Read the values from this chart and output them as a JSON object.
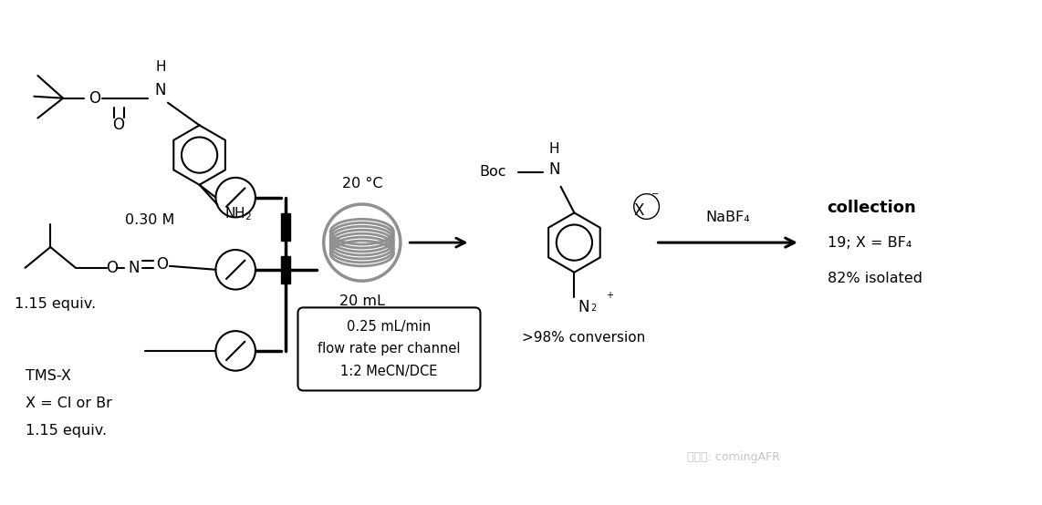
{
  "bg_color": "#ffffff",
  "fig_width": 11.42,
  "fig_height": 5.54,
  "watermark": "微信号: corningAFR",
  "labels": {
    "conc1": "0.30 M",
    "reagent2": "1.15 equiv.",
    "reagent3_line1": "TMS-X",
    "reagent3_line2": "X = Cl or Br",
    "reagent3_line3": "1.15 equiv.",
    "temp": "20 °C",
    "volume": "20 mL",
    "box_line1": "0.25 mL/min",
    "box_line2": "flow rate per channel",
    "box_line3": "1:2 MeCN/DCE",
    "conversion": ">98% conversion",
    "nabf4": "NaBF₄",
    "collection": "collection",
    "product_id": "19; X = BF₄",
    "yield_text": "82% isolated"
  }
}
